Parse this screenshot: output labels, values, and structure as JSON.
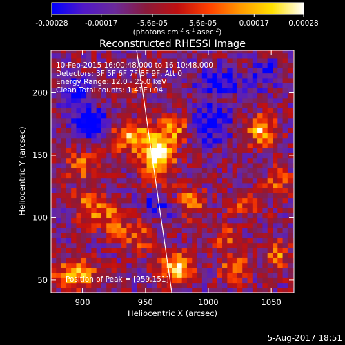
{
  "chart_data": {
    "type": "heatmap",
    "title": "Reconstructed RHESSI Image",
    "xlabel": "Heliocentric X (arcsec)",
    "ylabel": "Heliocentric Y (arcsec)",
    "xlim": [
      875,
      1068
    ],
    "ylim": [
      40,
      234
    ],
    "x_ticks": [
      900,
      950,
      1000,
      1050
    ],
    "y_ticks": [
      50,
      100,
      150,
      200
    ],
    "colorbar": {
      "range": [
        -0.00028,
        0.00028
      ],
      "ticks": [
        "-0.00028",
        "-0.00017",
        "-5.6e-05",
        "5.6e-05",
        "0.00017",
        "0.00028"
      ],
      "tick_values": [
        -0.00028,
        -0.00017,
        -5.6e-05,
        5.6e-05,
        0.00017,
        0.00028
      ],
      "colors": [
        "#0000ff",
        "#5018c8",
        "#6a2a9a",
        "#8a1a3a",
        "#c01010",
        "#ff4000",
        "#ff9a00",
        "#ffe000",
        "#ffffff"
      ],
      "label_units": "(photons cm",
      "label_exp1": "-2",
      "label_mid": " s",
      "label_exp2": "-1",
      "label_mid2": " asec",
      "label_exp3": "-2",
      "label_end": ")"
    },
    "annotations": [
      "10-Feb-2015 16:00:48.000 to 16:10:48.000",
      "Detectors: 3F 5F 6F 7F 8F 9F, Att 0",
      "Energy Range: 12.0 - 25.0 keV",
      "Clean     Total counts: 1.41E+04"
    ],
    "peak_label": "Position of Peak = [959,151]",
    "peak": [
      959,
      151
    ],
    "limb_line": [
      [
        943,
        234
      ],
      [
        971,
        40
      ]
    ],
    "sources": [
      {
        "x": 960,
        "y": 150,
        "sx": 9,
        "sy": 14,
        "amp": 1.0
      },
      {
        "x": 938,
        "y": 165,
        "sx": 10,
        "sy": 8,
        "amp": 0.75
      },
      {
        "x": 975,
        "y": 172,
        "sx": 8,
        "sy": 8,
        "amp": 0.55
      },
      {
        "x": 1042,
        "y": 170,
        "sx": 8,
        "sy": 8,
        "amp": 0.8
      },
      {
        "x": 905,
        "y": 110,
        "sx": 8,
        "sy": 10,
        "amp": 0.55
      },
      {
        "x": 925,
        "y": 98,
        "sx": 9,
        "sy": 9,
        "amp": 0.5
      },
      {
        "x": 985,
        "y": 112,
        "sx": 8,
        "sy": 8,
        "amp": 0.55
      },
      {
        "x": 1030,
        "y": 110,
        "sx": 10,
        "sy": 6,
        "amp": 0.45
      },
      {
        "x": 975,
        "y": 60,
        "sx": 9,
        "sy": 9,
        "amp": 0.85
      },
      {
        "x": 895,
        "y": 55,
        "sx": 12,
        "sy": 8,
        "amp": 0.7
      },
      {
        "x": 1020,
        "y": 60,
        "sx": 8,
        "sy": 8,
        "amp": 0.55
      },
      {
        "x": 1055,
        "y": 70,
        "sx": 7,
        "sy": 8,
        "amp": 0.5
      },
      {
        "x": 900,
        "y": 142,
        "sx": 10,
        "sy": 8,
        "amp": 0.45
      },
      {
        "x": 945,
        "y": 85,
        "sx": 9,
        "sy": 8,
        "amp": 0.45
      },
      {
        "x": 1015,
        "y": 85,
        "sx": 8,
        "sy": 7,
        "amp": 0.4
      },
      {
        "x": 1055,
        "y": 130,
        "sx": 7,
        "sy": 8,
        "amp": 0.4
      },
      {
        "x": 945,
        "y": 205,
        "sx": 9,
        "sy": 6,
        "amp": 0.3
      },
      {
        "x": 895,
        "y": 200,
        "sx": 8,
        "sy": 8,
        "amp": -0.55
      },
      {
        "x": 905,
        "y": 175,
        "sx": 10,
        "sy": 8,
        "amp": -0.7
      },
      {
        "x": 1000,
        "y": 175,
        "sx": 12,
        "sy": 12,
        "amp": -0.5
      },
      {
        "x": 1010,
        "y": 210,
        "sx": 14,
        "sy": 8,
        "amp": -0.4
      },
      {
        "x": 960,
        "y": 110,
        "sx": 10,
        "sy": 8,
        "amp": -0.35
      },
      {
        "x": 1045,
        "y": 215,
        "sx": 8,
        "sy": 8,
        "amp": -0.35
      }
    ]
  },
  "footer": {
    "date": "5-Aug-2017 18:51"
  }
}
